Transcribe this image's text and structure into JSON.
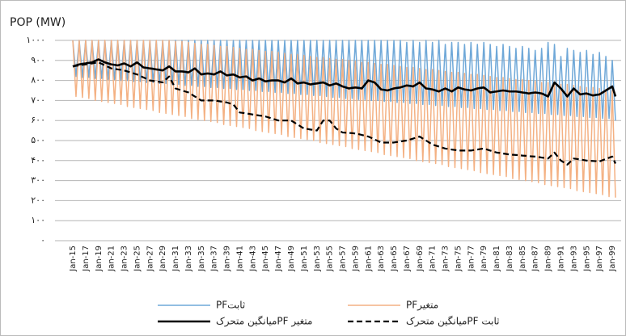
{
  "chart_data": {
    "type": "line",
    "title": "POP (MW)",
    "categories": [
      "Jan-15",
      null,
      null,
      null,
      "Jan-17",
      null,
      null,
      null,
      "Jan-19",
      null,
      null,
      null,
      "Jan-21",
      null,
      null,
      null,
      "Jan-23",
      null,
      null,
      null,
      "Jan-25",
      null,
      null,
      null,
      "Jan-27",
      null,
      null,
      null,
      "Jan-29",
      null,
      null,
      null,
      "Jan-31",
      null,
      null,
      null,
      "Jan-33",
      null,
      null,
      null,
      "Jan-35",
      null,
      null,
      null,
      "Jan-37",
      null,
      null,
      null,
      "Jan-39",
      null,
      null,
      null,
      "Jan-41",
      null,
      null,
      null,
      "Jan-43",
      null,
      null,
      null,
      "Jan-45",
      null,
      null,
      null,
      "Jan-47",
      null,
      null,
      null,
      "Jan-49",
      null,
      null,
      null,
      "Jan-51",
      null,
      null,
      null,
      "Jan-53",
      null,
      null,
      null,
      "Jan-55",
      null,
      null,
      null,
      "Jan-57",
      null,
      null,
      null,
      "Jan-59",
      null,
      null,
      null,
      "Jan-61",
      null,
      null,
      null,
      "Jan-63",
      null,
      null,
      null,
      "Jan-65",
      null,
      null,
      null,
      "Jan-67",
      null,
      null,
      null,
      "Jan-69",
      null,
      null,
      null,
      "Jan-71",
      null,
      null,
      null,
      "Jan-73",
      null,
      null,
      null,
      "Jan-75",
      null,
      null,
      null,
      "Jan-77",
      null,
      null,
      null,
      "Jan-79",
      null,
      null,
      null,
      "Jan-81",
      null,
      null,
      null,
      "Jan-83",
      null,
      null,
      null,
      "Jan-85",
      null,
      null,
      null,
      "Jan-87",
      null,
      null,
      null,
      "Jan-89",
      null,
      null,
      null,
      "Jan-91",
      null,
      null,
      null,
      "Jan-93",
      null,
      null,
      null,
      "Jan-95",
      null,
      null,
      null,
      "Jan-97",
      null,
      null,
      null,
      "Jan-99",
      null
    ],
    "series": [
      {
        "name": "PFثابت",
        "color": "#6fa8d8",
        "width": 1.5,
        "style": "solid",
        "values": [
          1000,
          820,
          1000,
          815,
          1000,
          815,
          1000,
          810,
          1000,
          810,
          1000,
          805,
          1000,
          805,
          1000,
          800,
          1000,
          800,
          1000,
          795,
          1000,
          795,
          1000,
          790,
          1000,
          790,
          1000,
          785,
          1000,
          785,
          1000,
          780,
          1000,
          780,
          1000,
          775,
          1000,
          775,
          1000,
          770,
          1000,
          770,
          1000,
          765,
          1000,
          765,
          1000,
          760,
          1000,
          760,
          1000,
          755,
          1000,
          755,
          1000,
          750,
          1000,
          750,
          1000,
          745,
          1000,
          745,
          1000,
          740,
          1000,
          740,
          1000,
          735,
          1000,
          735,
          1000,
          730,
          1000,
          730,
          1000,
          725,
          1000,
          725,
          1000,
          720,
          1000,
          715,
          1000,
          715,
          1000,
          710,
          1000,
          710,
          1000,
          705,
          1000,
          705,
          1000,
          700,
          1000,
          700,
          1000,
          695,
          1000,
          695,
          1000,
          690,
          1000,
          690,
          990,
          685,
          1000,
          685,
          990,
          680,
          1000,
          680,
          990,
          675,
          1000,
          675,
          980,
          670,
          990,
          670,
          990,
          665,
          980,
          665,
          990,
          660,
          980,
          660,
          990,
          655,
          980,
          655,
          970,
          650,
          980,
          650,
          970,
          645,
          960,
          645,
          970,
          640,
          960,
          640,
          950,
          635,
          960,
          635,
          990,
          630,
          980,
          630,
          920,
          625,
          960,
          625,
          950,
          620,
          940,
          620,
          950,
          615,
          930,
          615,
          940,
          610,
          920,
          610,
          900,
          600
        ]
      },
      {
        "name": "PFمتغیر",
        "color": "#f4b183",
        "width": 1.5,
        "style": "solid",
        "values": [
          1000,
          720,
          1000,
          715,
          1000,
          710,
          1000,
          700,
          1000,
          695,
          1000,
          690,
          1000,
          685,
          1000,
          680,
          1000,
          670,
          1000,
          665,
          1000,
          660,
          1000,
          655,
          1000,
          650,
          1000,
          640,
          1000,
          635,
          1000,
          630,
          995,
          625,
          995,
          620,
          990,
          610,
          985,
          605,
          980,
          600,
          980,
          595,
          975,
          590,
          970,
          580,
          970,
          575,
          965,
          570,
          960,
          565,
          955,
          560,
          955,
          550,
          950,
          545,
          945,
          540,
          945,
          535,
          940,
          530,
          935,
          520,
          930,
          515,
          930,
          510,
          925,
          505,
          920,
          500,
          915,
          490,
          915,
          485,
          910,
          480,
          905,
          475,
          905,
          470,
          900,
          460,
          895,
          455,
          890,
          450,
          890,
          445,
          885,
          440,
          880,
          430,
          880,
          425,
          875,
          420,
          870,
          415,
          865,
          410,
          865,
          400,
          860,
          395,
          855,
          390,
          855,
          385,
          850,
          380,
          845,
          370,
          840,
          365,
          840,
          360,
          835,
          355,
          830,
          350,
          830,
          340,
          825,
          335,
          820,
          330,
          815,
          325,
          815,
          320,
          810,
          310,
          805,
          305,
          805,
          300,
          800,
          295,
          795,
          290,
          790,
          280,
          790,
          275,
          785,
          270,
          780,
          265,
          780,
          260,
          775,
          250,
          770,
          245,
          765,
          240,
          765,
          235,
          760,
          230,
          755,
          220,
          750,
          215
        ]
      },
      {
        "name": "متغیر PFمیانگین متحرک",
        "color": "#000000",
        "width": 2.6,
        "style": "solid",
        "values": [
          870,
          875,
          880,
          883,
          885,
          888,
          890,
          898,
          905,
          898,
          890,
          885,
          880,
          878,
          875,
          880,
          885,
          878,
          870,
          880,
          890,
          878,
          865,
          863,
          860,
          858,
          855,
          853,
          850,
          860,
          870,
          858,
          845,
          845,
          845,
          843,
          840,
          850,
          860,
          845,
          830,
          833,
          835,
          833,
          830,
          838,
          845,
          835,
          825,
          828,
          830,
          823,
          815,
          818,
          820,
          810,
          800,
          805,
          810,
          803,
          795,
          798,
          800,
          800,
          800,
          795,
          790,
          800,
          810,
          798,
          785,
          788,
          790,
          785,
          780,
          783,
          785,
          788,
          790,
          783,
          775,
          780,
          785,
          778,
          770,
          765,
          760,
          763,
          765,
          763,
          760,
          780,
          800,
          795,
          790,
          773,
          755,
          753,
          750,
          755,
          760,
          763,
          765,
          770,
          775,
          773,
          770,
          780,
          790,
          775,
          760,
          758,
          755,
          750,
          745,
          753,
          760,
          753,
          745,
          755,
          765,
          760,
          755,
          753,
          750,
          755,
          760,
          763,
          765,
          753,
          740,
          743,
          745,
          748,
          750,
          748,
          745,
          745,
          745,
          743,
          740,
          738,
          735,
          738,
          740,
          738,
          735,
          728,
          720,
          755,
          790,
          775,
          760,
          740,
          720,
          740,
          760,
          745,
          730,
          733,
          735,
          730,
          725,
          728,
          730,
          740,
          750,
          760,
          770,
          720
        ]
      },
      {
        "name": "ثابت PFمیانگین متحرک",
        "color": "#000000",
        "width": 2.2,
        "style": "dashed",
        "values": [
          870,
          873,
          875,
          878,
          880,
          883,
          885,
          888,
          890,
          883,
          875,
          868,
          860,
          858,
          855,
          853,
          850,
          845,
          840,
          835,
          830,
          823,
          815,
          808,
          800,
          798,
          795,
          793,
          790,
          805,
          820,
          790,
          760,
          755,
          750,
          745,
          740,
          730,
          720,
          710,
          700,
          700,
          700,
          700,
          700,
          698,
          695,
          693,
          690,
          685,
          680,
          660,
          640,
          638,
          635,
          633,
          630,
          628,
          625,
          623,
          620,
          615,
          610,
          605,
          600,
          600,
          600,
          600,
          600,
          590,
          580,
          570,
          560,
          558,
          555,
          553,
          550,
          575,
          600,
          600,
          600,
          580,
          560,
          550,
          540,
          539,
          538,
          537,
          535,
          532,
          528,
          524,
          520,
          513,
          505,
          498,
          490,
          490,
          490,
          490,
          490,
          493,
          495,
          498,
          500,
          505,
          510,
          515,
          520,
          510,
          500,
          490,
          480,
          475,
          470,
          465,
          460,
          458,
          455,
          453,
          450,
          450,
          450,
          450,
          450,
          453,
          455,
          458,
          460,
          455,
          450,
          445,
          440,
          438,
          435,
          433,
          430,
          429,
          428,
          427,
          425,
          424,
          422,
          421,
          420,
          418,
          415,
          413,
          410,
          425,
          440,
          420,
          400,
          390,
          380,
          395,
          410,
          408,
          405,
          403,
          400,
          399,
          398,
          397,
          395,
          402,
          408,
          414,
          420,
          385
        ]
      }
    ],
    "ylim": [
      0,
      1000
    ],
    "yticks": [
      {
        "value": 0,
        "label": "۰"
      },
      {
        "value": 100,
        "label": "۱۰۰"
      },
      {
        "value": 200,
        "label": "۲۰۰"
      },
      {
        "value": 300,
        "label": "۳۰۰"
      },
      {
        "value": 400,
        "label": "۴۰۰"
      },
      {
        "value": 500,
        "label": "۵۰۰"
      },
      {
        "value": 600,
        "label": "۶۰۰"
      },
      {
        "value": 700,
        "label": "۷۰۰"
      },
      {
        "value": 800,
        "label": "۸۰۰"
      },
      {
        "value": 900,
        "label": "۹۰۰"
      },
      {
        "value": 1000,
        "label": "۱۰۰۰"
      }
    ],
    "grid": true
  }
}
